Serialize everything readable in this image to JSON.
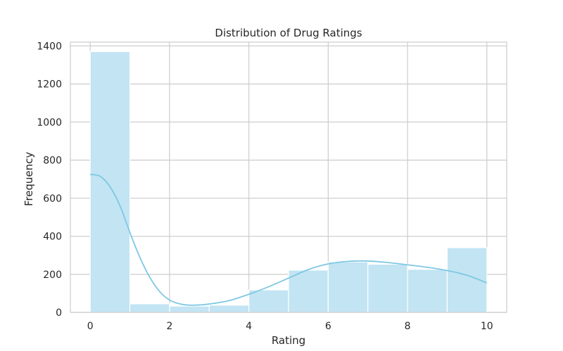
{
  "chart_data": {
    "type": "bar",
    "subtype": "histogram",
    "title": "Distribution of Drug Ratings",
    "xlabel": "Rating",
    "ylabel": "Frequency",
    "xlim": [
      -0.5,
      10.5
    ],
    "ylim": [
      0,
      1420
    ],
    "xticks": [
      0,
      2,
      4,
      6,
      8,
      10
    ],
    "yticks": [
      0,
      200,
      400,
      600,
      800,
      1000,
      1200,
      1400
    ],
    "grid": true,
    "bins": [
      {
        "start": 0,
        "end": 1,
        "count": 1370
      },
      {
        "start": 1,
        "end": 2,
        "count": 45
      },
      {
        "start": 2,
        "end": 3,
        "count": 33
      },
      {
        "start": 3,
        "end": 4,
        "count": 38
      },
      {
        "start": 4,
        "end": 5,
        "count": 118
      },
      {
        "start": 5,
        "end": 6,
        "count": 222
      },
      {
        "start": 6,
        "end": 7,
        "count": 265
      },
      {
        "start": 7,
        "end": 8,
        "count": 253
      },
      {
        "start": 8,
        "end": 9,
        "count": 226
      },
      {
        "start": 9,
        "end": 10,
        "count": 340
      }
    ],
    "kde": {
      "x": [
        0,
        0.25,
        0.5,
        0.75,
        1,
        1.25,
        1.5,
        1.75,
        2,
        2.25,
        2.5,
        2.75,
        3,
        3.5,
        4,
        4.5,
        5,
        5.5,
        6,
        6.5,
        7,
        7.5,
        8,
        8.5,
        9,
        9.5,
        10
      ],
      "y": [
        725,
        715,
        660,
        560,
        420,
        290,
        185,
        110,
        65,
        45,
        38,
        39,
        44,
        62,
        95,
        135,
        180,
        225,
        255,
        268,
        270,
        262,
        250,
        237,
        220,
        195,
        155
      ]
    },
    "colors": {
      "bar_fill": "#c2e4f3",
      "bar_edge": "#ffffff",
      "kde_line": "#7ec8e3",
      "grid": "#cccccc",
      "frame": "#cccccc"
    }
  }
}
